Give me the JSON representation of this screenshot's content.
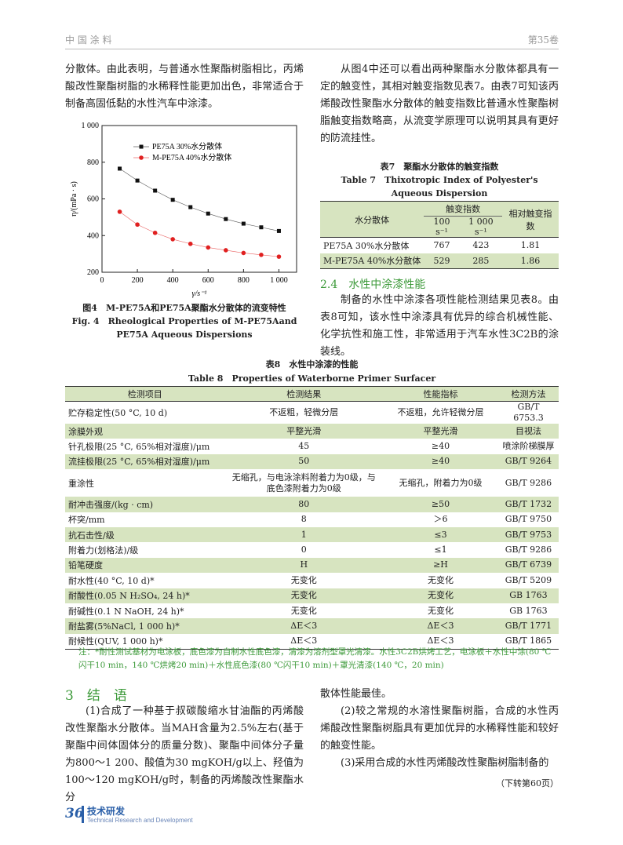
{
  "header": {
    "journal": "中 国 涂 料",
    "volume": "第35卷"
  },
  "left_column": {
    "paragraph": "分散体。由此表明，与普通水性聚酯树脂相比，丙烯酸改性聚酯树脂的水稀释性能更加出色，非常适合于制备高固低黏的水性汽车中涂漆。"
  },
  "right_column": {
    "paragraph": "从图4中还可以看出两种聚酯水分散体都具有一定的触变性，其相对触变指数见表7。由表7可知该丙烯酸改性聚酯水分散体的触变指数比普通水性聚酯树脂触变指数略高，从流变学原理可以说明其具有更好的防流挂性。"
  },
  "chart_data": {
    "type": "line",
    "x_label": "γ/s⁻¹",
    "y_label": "η/(mPa · s)",
    "x": [
      100,
      200,
      300,
      400,
      500,
      600,
      700,
      800,
      900,
      1000
    ],
    "series": [
      {
        "name": "PE75A  30%水分散体",
        "color": "#111111",
        "marker": "square",
        "values": [
          765,
          700,
          645,
          595,
          555,
          520,
          490,
          465,
          445,
          425
        ]
      },
      {
        "name": "M-PE75A  40%水分散体",
        "color": "#e02020",
        "marker": "circle",
        "values": [
          530,
          460,
          415,
          380,
          355,
          335,
          320,
          305,
          295,
          285
        ]
      }
    ],
    "xlim": [
      0,
      1100
    ],
    "ylim": [
      200,
      1000
    ],
    "xticks": [
      0,
      200,
      400,
      600,
      800,
      {
        "value": 1000,
        "label": "1 000"
      }
    ],
    "yticks": [
      200,
      400,
      600,
      800,
      {
        "value": 1000,
        "label": "1 000"
      }
    ]
  },
  "figure4": {
    "caption_cn": "图4　M-PE75A和PE75A聚酯水分散体的流变特性",
    "caption_en": "Fig. 4　Rheological Properties of M-PE75Aand PE75A Aqueous Dispersions"
  },
  "table7": {
    "caption_cn": "表7　聚酯水分散体的触变指数",
    "caption_en": "Table 7　Thixotropic Index of Polyester's Aqueous Dispersion",
    "header": {
      "col1": "水分散体",
      "group": "触变指数",
      "sub1": "100 s⁻¹",
      "sub2": "1 000 s⁻¹",
      "col4": "相对触变指数"
    },
    "rows": [
      [
        "PE75A 30%水分散体",
        767,
        423,
        1.81
      ],
      [
        "M-PE75A 40%水分散体",
        529,
        285,
        1.86
      ]
    ]
  },
  "section_2_4": {
    "heading": "2.4　水性中涂漆性能",
    "paragraph": "制备的水性中涂漆各项性能检测结果见表8。由表8可知，该水性中涂漆具有优异的综合机械性能、化学抗性和施工性，非常适用于汽车水性3C2B的涂装线。"
  },
  "table8": {
    "caption_cn": "表8　水性中涂漆的性能",
    "caption_en": "Table 8　Properties of Waterborne Primer Surfacer",
    "header": [
      "检测项目",
      "检测结果",
      "性能指标",
      "检测方法"
    ],
    "rows": [
      [
        "贮存稳定性(50 °C, 10 d)",
        "不返粗，轻微分层",
        "不返粗，允许轻微分层",
        "GB/T 6753.3"
      ],
      [
        "涂膜外观",
        "平整光滑",
        "平整光滑",
        "目视法"
      ],
      [
        "针孔极限(25 °C, 65%相对湿度)/μm",
        45,
        "≥40",
        "喷涂阶梯膜厚"
      ],
      [
        "流挂极限(25 °C, 65%相对湿度)/μm",
        50,
        "≥40",
        "GB/T 9264"
      ],
      [
        "重涂性",
        "无缩孔，与电泳涂料附着力为0级，与底色漆附着力为0级",
        "无缩孔，附着力为0级",
        "GB/T 9286"
      ],
      [
        "耐冲击强度/(kg · cm)",
        80,
        "≥50",
        "GB/T 1732"
      ],
      [
        "杯突/mm",
        8,
        "＞6",
        "GB/T 9750"
      ],
      [
        "抗石击性/级",
        1,
        "≤3",
        "GB/T 9753"
      ],
      [
        "附着力(划格法)/级",
        0,
        "≤1",
        "GB/T 9286"
      ],
      [
        "铅笔硬度",
        "H",
        "≥H",
        "GB/T 6739"
      ],
      [
        "耐水性(40 °C, 10 d)*",
        "无变化",
        "无变化",
        "GB/T 5209"
      ],
      [
        "耐酸性(0.05 N H₂SO₄, 24 h)*",
        "无变化",
        "无变化",
        "GB 1763"
      ],
      [
        "耐碱性(0.1 N NaOH, 24 h)*",
        "无变化",
        "无变化",
        "GB 1763"
      ],
      [
        "耐盐雾(5%NaCl, 1 000 h)*",
        "ΔE＜3",
        "ΔE＜3",
        "GB/T 1771"
      ],
      [
        "耐候性(QUV, 1 000 h)*",
        "ΔE＜3",
        "ΔE＜3",
        "GB/T 1865"
      ]
    ],
    "note": "注：*耐性测试基材为电泳板，底色漆为自制水性底色漆，清漆为溶剂型罩光清漆。水性3C2B烘烤工艺，电泳板＋水性中涂(80 ℃闪干10 min，140 ℃烘烤20 min)＋水性底色漆(80 ℃闪干10 min)＋罩光清漆(140 ℃，20 min)"
  },
  "section_3": {
    "heading": "3　结　语",
    "left_paragraph": "(1)合成了一种基于叔碳酸缩水甘油酯的丙烯酸改性聚酯水分散体。当MAH含量为2.5%左右(基于聚酯中间体固体分的质量分数)、聚酯中间体分子量为800～1 200、酸值为30 mgKOH/g以上、羟值为100～120 mgKOH/g时，制备的丙烯酸改性聚酯水分",
    "right_paragraphs": [
      "散体性能最佳。",
      "(2)较之常规的水溶性聚酯树脂，合成的水性丙烯酸改性聚酯树脂具有更加优异的水稀释性能和较好的触变性能。",
      "(3)采用合成的水性丙烯酸改性聚酯树脂制备的"
    ],
    "continued": "（下转第60页）"
  },
  "footer": {
    "page": "36",
    "section_cn": "技术研发",
    "section_en": "Technical Research and Development"
  }
}
